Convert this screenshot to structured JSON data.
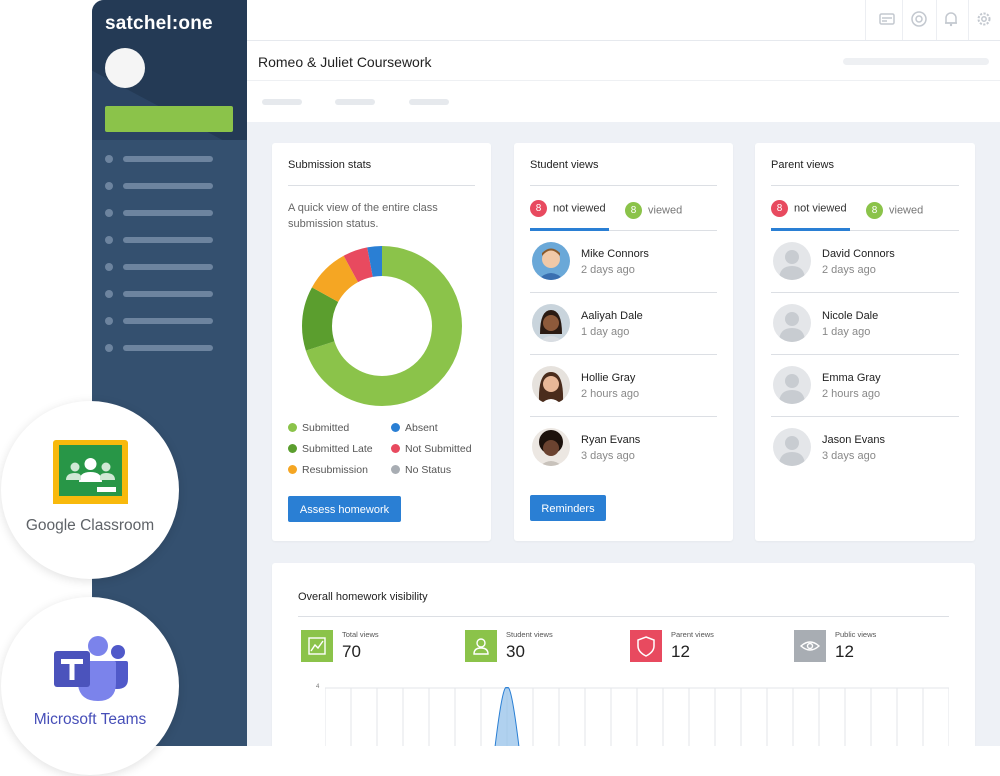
{
  "app": {
    "logo": "satchel:one",
    "page_title": "Romeo & Juliet Coursework"
  },
  "header_icons": [
    "card-icon",
    "help-icon",
    "bell-icon",
    "settings-icon"
  ],
  "submission_stats": {
    "title": "Submission stats",
    "description": "A quick view of the entire class submission status.",
    "legend": [
      {
        "label": "Submitted",
        "color": "#8bc34a"
      },
      {
        "label": "Absent",
        "color": "#2a7fd4"
      },
      {
        "label": "Submitted Late",
        "color": "#5b9e2e"
      },
      {
        "label": "Not Submitted",
        "color": "#e84a5f"
      },
      {
        "label": "Resubmission",
        "color": "#f5a623"
      },
      {
        "label": "No Status",
        "color": "#a8adb3"
      }
    ],
    "button": "Assess homework"
  },
  "chart_data": {
    "type": "pie",
    "categories": [
      "Submitted",
      "Submitted Late",
      "Resubmission",
      "Not Submitted",
      "Absent"
    ],
    "values": [
      70,
      13,
      9,
      5,
      3
    ],
    "colors": [
      "#8bc34a",
      "#5b9e2e",
      "#f5a623",
      "#e84a5f",
      "#2a7fd4"
    ]
  },
  "student_views": {
    "title": "Student views",
    "not_viewed_count": "8",
    "not_viewed_label": "not viewed",
    "viewed_count": "8",
    "viewed_label": "viewed",
    "people": [
      {
        "name": "Mike Connors",
        "time": "2 days ago"
      },
      {
        "name": "Aaliyah Dale",
        "time": "1 day ago"
      },
      {
        "name": "Hollie Gray",
        "time": "2 hours ago"
      },
      {
        "name": "Ryan Evans",
        "time": "3 days ago"
      }
    ],
    "button": "Reminders"
  },
  "parent_views": {
    "title": "Parent views",
    "not_viewed_count": "8",
    "not_viewed_label": "not viewed",
    "viewed_count": "8",
    "viewed_label": "viewed",
    "people": [
      {
        "name": "David Connors",
        "time": "2 days ago"
      },
      {
        "name": "Nicole Dale",
        "time": "1 day ago"
      },
      {
        "name": "Emma Gray",
        "time": "2 hours ago"
      },
      {
        "name": "Jason Evans",
        "time": "3 days ago"
      }
    ]
  },
  "visibility": {
    "title": "Overall homework visibility",
    "stats": [
      {
        "label": "Total views",
        "value": "70",
        "color": "#8bc34a",
        "icon": "chart-icon"
      },
      {
        "label": "Student views",
        "value": "30",
        "color": "#8bc34a",
        "icon": "user-icon"
      },
      {
        "label": "Parent views",
        "value": "12",
        "color": "#e84a5f",
        "icon": "shield-icon"
      },
      {
        "label": "Public views",
        "value": "12",
        "color": "#a8adb3",
        "icon": "eye-icon"
      }
    ],
    "y_tick": "4"
  },
  "integrations": {
    "google": "Google Classroom",
    "teams": "Microsoft Teams"
  }
}
